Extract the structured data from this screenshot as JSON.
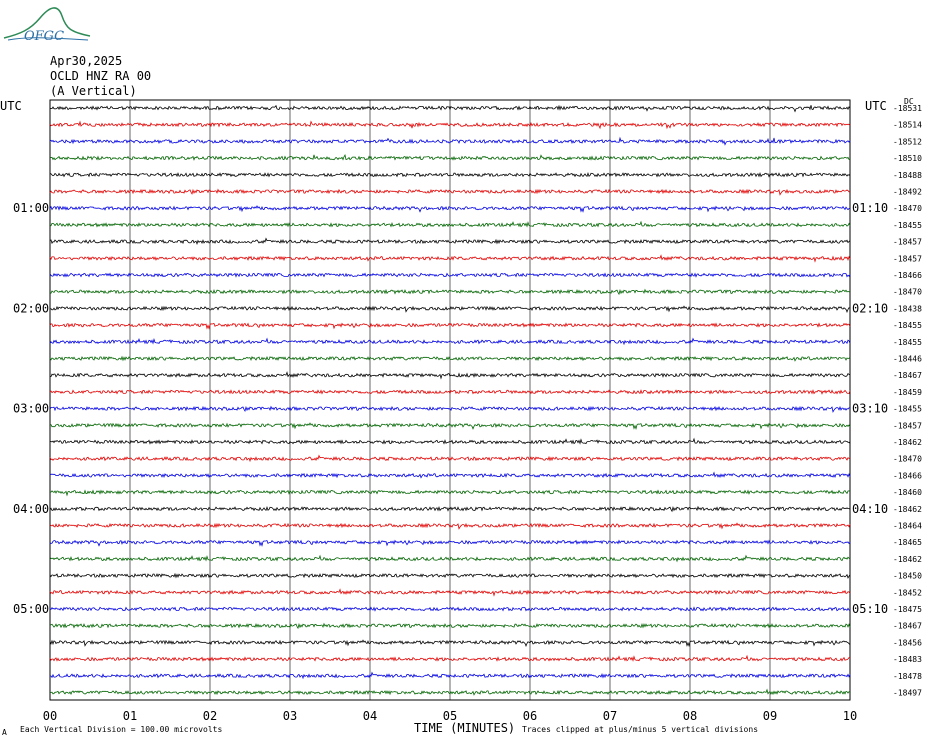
{
  "logo": {
    "text": "OFGC"
  },
  "header": {
    "date": "Apr30,2025",
    "station": "OCLD HNZ RA 00",
    "component": "(A Vertical)"
  },
  "utc_left": "UTC",
  "utc_right": "UTC",
  "top_right_tag": "DC",
  "footer": {
    "corner": "A",
    "scale": "Each Vertical Division =  100.00 microvolts",
    "xlabel": "TIME (MINUTES)",
    "clip_note": "Traces clipped at plus/minus 5 vertical divisions"
  },
  "chart_data": {
    "type": "line",
    "title": "",
    "xlabel": "TIME (MINUTES)",
    "ylabel": "",
    "xlim": [
      0,
      10
    ],
    "x_ticks": [
      "00",
      "01",
      "02",
      "03",
      "04",
      "05",
      "06",
      "07",
      "08",
      "09",
      "10"
    ],
    "grid": true,
    "series_colors": [
      "#000000",
      "#e00000",
      "#0000e0",
      "#006400"
    ],
    "left_time_labels": [
      {
        "row": 6,
        "text": "01:00"
      },
      {
        "row": 12,
        "text": "02:00"
      },
      {
        "row": 18,
        "text": "03:00"
      },
      {
        "row": 24,
        "text": "04:00"
      },
      {
        "row": 30,
        "text": "05:00"
      }
    ],
    "right_time_labels": [
      {
        "row": 6,
        "text": "01:10"
      },
      {
        "row": 12,
        "text": "02:10"
      },
      {
        "row": 18,
        "text": "03:10"
      },
      {
        "row": 24,
        "text": "04:10"
      },
      {
        "row": 30,
        "text": "05:10"
      }
    ],
    "trace_offsets": [
      "-18531",
      "-18514",
      "-18512",
      "-18510",
      "-18488",
      "-18492",
      "-18470",
      "-18455",
      "-18457",
      "-18457",
      "-18466",
      "-18470",
      "-18438",
      "-18455",
      "-18455",
      "-18446",
      "-18467",
      "-18459",
      "-18455",
      "-18457",
      "-18462",
      "-18470",
      "-18466",
      "-18460",
      "-18462",
      "-18464",
      "-18465",
      "-18462",
      "-18450",
      "-18452",
      "-18475",
      "-18467",
      "-18456",
      "-18483",
      "-18478",
      "-18497"
    ]
  }
}
